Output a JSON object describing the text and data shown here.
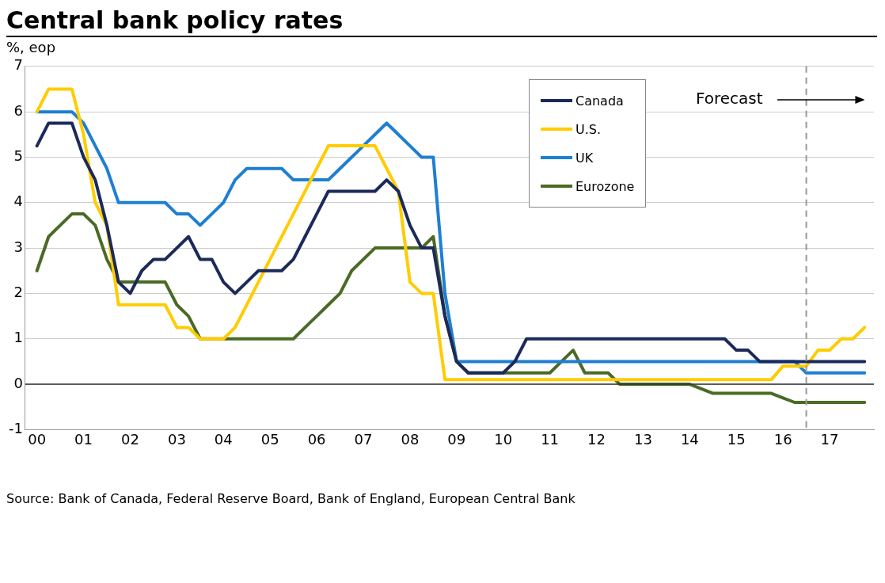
{
  "chart_data": {
    "type": "line",
    "title": "Central bank policy rates",
    "ylabel": "%, eop",
    "x": [
      0,
      0.25,
      0.5,
      0.75,
      1,
      1.25,
      1.5,
      1.75,
      2,
      2.25,
      2.5,
      2.75,
      3,
      3.25,
      3.5,
      3.75,
      4,
      4.25,
      4.5,
      4.75,
      5,
      5.25,
      5.5,
      5.75,
      6,
      6.25,
      6.5,
      6.75,
      7,
      7.25,
      7.5,
      7.75,
      8,
      8.25,
      8.5,
      8.75,
      9,
      9.25,
      9.5,
      9.75,
      10,
      10.25,
      10.5,
      10.75,
      11,
      11.25,
      11.5,
      11.75,
      12,
      12.25,
      12.5,
      12.75,
      13,
      13.25,
      13.5,
      13.75,
      14,
      14.25,
      14.5,
      14.75,
      15,
      15.25,
      15.5,
      15.75,
      16,
      16.25,
      16.5,
      16.75,
      17,
      17.25,
      17.5,
      17.75
    ],
    "series": [
      {
        "name": "Canada",
        "color": "#1c2a5a",
        "values": [
          5.25,
          5.75,
          5.75,
          5.75,
          5,
          4.5,
          3.5,
          2.25,
          2,
          2.5,
          2.75,
          2.75,
          3,
          3.25,
          2.75,
          2.75,
          2.25,
          2,
          2.25,
          2.5,
          2.5,
          2.5,
          2.75,
          3.25,
          3.75,
          4.25,
          4.25,
          4.25,
          4.25,
          4.25,
          4.5,
          4.25,
          3.5,
          3,
          3,
          1.5,
          0.5,
          0.25,
          0.25,
          0.25,
          0.25,
          0.5,
          1,
          1,
          1,
          1,
          1,
          1,
          1,
          1,
          1,
          1,
          1,
          1,
          1,
          1,
          1,
          1,
          1,
          1,
          0.75,
          0.75,
          0.5,
          0.5,
          0.5,
          0.5,
          0.5,
          0.5,
          0.5,
          0.5,
          0.5,
          0.5
        ]
      },
      {
        "name": "U.S.",
        "color": "#ffcc00",
        "values": [
          6,
          6.5,
          6.5,
          6.5,
          5.5,
          4,
          3.5,
          1.75,
          1.75,
          1.75,
          1.75,
          1.75,
          1.25,
          1.25,
          1,
          1,
          1,
          1.25,
          1.75,
          2.25,
          2.75,
          3.25,
          3.75,
          4.25,
          4.75,
          5.25,
          5.25,
          5.25,
          5.25,
          5.25,
          4.75,
          4.25,
          2.25,
          2,
          2,
          0.1,
          0.1,
          0.1,
          0.1,
          0.1,
          0.1,
          0.1,
          0.1,
          0.1,
          0.1,
          0.1,
          0.1,
          0.1,
          0.1,
          0.1,
          0.1,
          0.1,
          0.1,
          0.1,
          0.1,
          0.1,
          0.1,
          0.1,
          0.1,
          0.1,
          0.1,
          0.1,
          0.1,
          0.1,
          0.4,
          0.4,
          0.4,
          0.75,
          0.75,
          1,
          1,
          1.25
        ]
      },
      {
        "name": "UK",
        "color": "#1f7fd0",
        "values": [
          6,
          6,
          6,
          6,
          5.75,
          5.25,
          4.75,
          4,
          4,
          4,
          4,
          4,
          3.75,
          3.75,
          3.5,
          3.75,
          4,
          4.5,
          4.75,
          4.75,
          4.75,
          4.75,
          4.5,
          4.5,
          4.5,
          4.5,
          4.75,
          5,
          5.25,
          5.5,
          5.75,
          5.5,
          5.25,
          5,
          5,
          2,
          0.5,
          0.5,
          0.5,
          0.5,
          0.5,
          0.5,
          0.5,
          0.5,
          0.5,
          0.5,
          0.5,
          0.5,
          0.5,
          0.5,
          0.5,
          0.5,
          0.5,
          0.5,
          0.5,
          0.5,
          0.5,
          0.5,
          0.5,
          0.5,
          0.5,
          0.5,
          0.5,
          0.5,
          0.5,
          0.5,
          0.25,
          0.25,
          0.25,
          0.25,
          0.25,
          0.25
        ]
      },
      {
        "name": "Eurozone",
        "color": "#4a6a26",
        "values": [
          2.5,
          3.25,
          3.5,
          3.75,
          3.75,
          3.5,
          2.75,
          2.25,
          2.25,
          2.25,
          2.25,
          2.25,
          1.75,
          1.5,
          1,
          1,
          1,
          1,
          1,
          1,
          1,
          1,
          1,
          1.25,
          1.5,
          1.75,
          2,
          2.5,
          2.75,
          3,
          3,
          3,
          3,
          3,
          3.25,
          1.5,
          0.5,
          0.25,
          0.25,
          0.25,
          0.25,
          0.25,
          0.25,
          0.25,
          0.25,
          0.5,
          0.75,
          0.25,
          0.25,
          0.25,
          0,
          0,
          0,
          0,
          0,
          0,
          0,
          -0.1,
          -0.2,
          -0.2,
          -0.2,
          -0.2,
          -0.2,
          -0.2,
          -0.3,
          -0.4,
          -0.4,
          -0.4,
          -0.4,
          -0.4,
          -0.4,
          -0.4
        ]
      }
    ],
    "xlim": [
      -0.25,
      17.95
    ],
    "xticks": [
      {
        "value": 0,
        "label": "00"
      },
      {
        "value": 1,
        "label": "01"
      },
      {
        "value": 2,
        "label": "02"
      },
      {
        "value": 3,
        "label": "03"
      },
      {
        "value": 4,
        "label": "04"
      },
      {
        "value": 5,
        "label": "05"
      },
      {
        "value": 6,
        "label": "06"
      },
      {
        "value": 7,
        "label": "07"
      },
      {
        "value": 8,
        "label": "08"
      },
      {
        "value": 9,
        "label": "09"
      },
      {
        "value": 10,
        "label": "10"
      },
      {
        "value": 11,
        "label": "11"
      },
      {
        "value": 12,
        "label": "12"
      },
      {
        "value": 13,
        "label": "13"
      },
      {
        "value": 14,
        "label": "14"
      },
      {
        "value": 15,
        "label": "15"
      },
      {
        "value": 16,
        "label": "16"
      },
      {
        "value": 17,
        "label": "17"
      }
    ],
    "ylim": [
      -1,
      7
    ],
    "yticks": [
      -1,
      0,
      1,
      2,
      3,
      4,
      5,
      6,
      7
    ],
    "ref_lines": [
      {
        "axis": "x",
        "value": 16.5,
        "label": "Forecast",
        "color": "#999999",
        "line_style": "dashed"
      }
    ],
    "annotations": [
      "Source: Bank of Canada, Federal Reserve Board, Bank of England, European Central Bank"
    ],
    "grid": "y",
    "legend": "top right",
    "marker": "none",
    "line_style": "solid"
  }
}
